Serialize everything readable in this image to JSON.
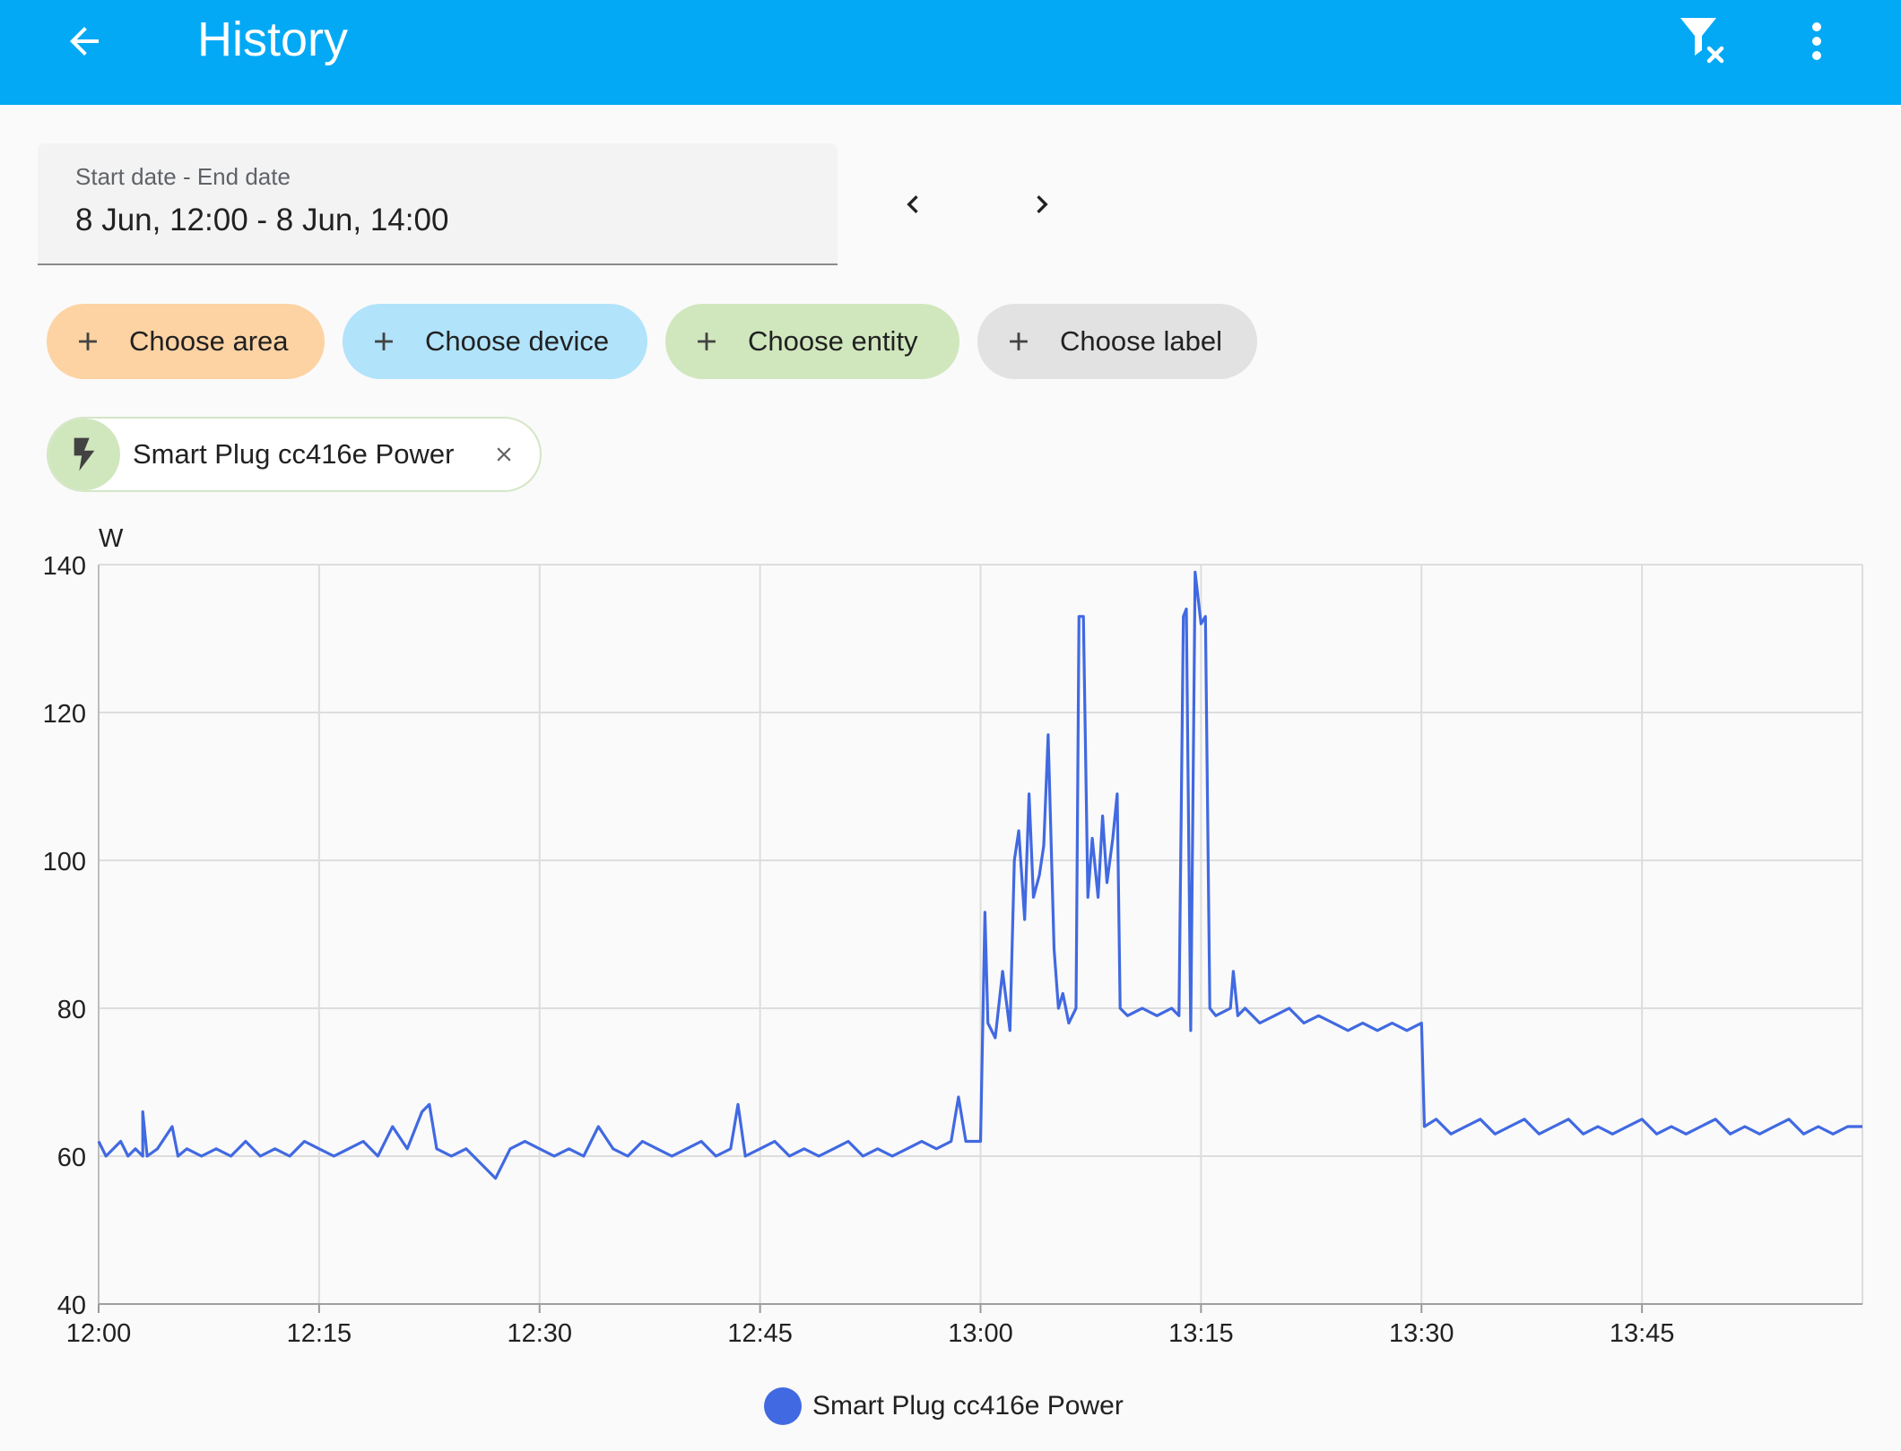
{
  "header": {
    "title": "History",
    "back_icon": "arrow-left-icon",
    "filter_clear_icon": "filter-remove-icon",
    "menu_icon": "dots-vertical-icon",
    "bg_color": "#03a9f4"
  },
  "date_range": {
    "label": "Start date - End date",
    "value": "8 Jun, 12:00 - 8 Jun, 14:00",
    "prev_icon": "chevron-left-icon",
    "next_icon": "chevron-right-icon"
  },
  "chips": {
    "area": "Choose area",
    "device": "Choose device",
    "entity": "Choose entity",
    "label": "Choose label"
  },
  "selected_entity": {
    "label": "Smart Plug cc416e Power",
    "icon": "flash-icon",
    "remove_icon": "close-icon"
  },
  "chart_data": {
    "type": "line",
    "unit_label": "W",
    "y_ticks": [
      "140",
      "120",
      "100",
      "80",
      "60",
      "40"
    ],
    "x_ticks": [
      "12:00",
      "12:15",
      "12:30",
      "12:45",
      "13:00",
      "13:15",
      "13:30",
      "13:45"
    ],
    "ylim": [
      40,
      140
    ],
    "xlim_minutes": [
      0,
      120
    ],
    "grid": true,
    "legend_position": "bottom-center",
    "series": [
      {
        "name": "Smart Plug cc416e Power",
        "color": "#4169e1",
        "points": [
          [
            0,
            62
          ],
          [
            0.5,
            60
          ],
          [
            1,
            61
          ],
          [
            1.5,
            62
          ],
          [
            2,
            60
          ],
          [
            2.5,
            61
          ],
          [
            3,
            60
          ],
          [
            3,
            66
          ],
          [
            3.3,
            60
          ],
          [
            4,
            61
          ],
          [
            5,
            64
          ],
          [
            5.4,
            60
          ],
          [
            6,
            61
          ],
          [
            7,
            60
          ],
          [
            8,
            61
          ],
          [
            9,
            60
          ],
          [
            10,
            62
          ],
          [
            11,
            60
          ],
          [
            12,
            61
          ],
          [
            13,
            60
          ],
          [
            14,
            62
          ],
          [
            15,
            61
          ],
          [
            16,
            60
          ],
          [
            17,
            61
          ],
          [
            18,
            62
          ],
          [
            19,
            60
          ],
          [
            20,
            64
          ],
          [
            21,
            61
          ],
          [
            22,
            66
          ],
          [
            22.5,
            67
          ],
          [
            23,
            61
          ],
          [
            24,
            60
          ],
          [
            25,
            61
          ],
          [
            26,
            59
          ],
          [
            27,
            57
          ],
          [
            28,
            61
          ],
          [
            29,
            62
          ],
          [
            30,
            61
          ],
          [
            31,
            60
          ],
          [
            32,
            61
          ],
          [
            33,
            60
          ],
          [
            34,
            64
          ],
          [
            35,
            61
          ],
          [
            36,
            60
          ],
          [
            37,
            62
          ],
          [
            38,
            61
          ],
          [
            39,
            60
          ],
          [
            40,
            61
          ],
          [
            41,
            62
          ],
          [
            42,
            60
          ],
          [
            43,
            61
          ],
          [
            43.5,
            67
          ],
          [
            44,
            60
          ],
          [
            45,
            61
          ],
          [
            46,
            62
          ],
          [
            47,
            60
          ],
          [
            48,
            61
          ],
          [
            49,
            60
          ],
          [
            50,
            61
          ],
          [
            51,
            62
          ],
          [
            52,
            60
          ],
          [
            53,
            61
          ],
          [
            54,
            60
          ],
          [
            55,
            61
          ],
          [
            56,
            62
          ],
          [
            57,
            61
          ],
          [
            58,
            62
          ],
          [
            58.5,
            68
          ],
          [
            59,
            62
          ],
          [
            59.5,
            62
          ],
          [
            60,
            62
          ],
          [
            60.3,
            93
          ],
          [
            60.5,
            78
          ],
          [
            61,
            76
          ],
          [
            61.5,
            85
          ],
          [
            62,
            77
          ],
          [
            62.3,
            100
          ],
          [
            62.6,
            104
          ],
          [
            63,
            92
          ],
          [
            63.3,
            109
          ],
          [
            63.6,
            95
          ],
          [
            64,
            98
          ],
          [
            64.3,
            102
          ],
          [
            64.6,
            117
          ],
          [
            65,
            88
          ],
          [
            65.3,
            80
          ],
          [
            65.6,
            82
          ],
          [
            66,
            78
          ],
          [
            66.5,
            80
          ],
          [
            66.7,
            133
          ],
          [
            67,
            133
          ],
          [
            67.3,
            95
          ],
          [
            67.6,
            103
          ],
          [
            68,
            95
          ],
          [
            68.3,
            106
          ],
          [
            68.6,
            97
          ],
          [
            69,
            103
          ],
          [
            69.3,
            109
          ],
          [
            69.5,
            80
          ],
          [
            70,
            79
          ],
          [
            71,
            80
          ],
          [
            72,
            79
          ],
          [
            73,
            80
          ],
          [
            73.5,
            79
          ],
          [
            73.8,
            133
          ],
          [
            74,
            134
          ],
          [
            74.3,
            77
          ],
          [
            74.6,
            139
          ],
          [
            75,
            132
          ],
          [
            75.3,
            133
          ],
          [
            75.6,
            80
          ],
          [
            76,
            79
          ],
          [
            77,
            80
          ],
          [
            77.2,
            85
          ],
          [
            77.5,
            79
          ],
          [
            78,
            80
          ],
          [
            79,
            78
          ],
          [
            80,
            79
          ],
          [
            81,
            80
          ],
          [
            82,
            78
          ],
          [
            83,
            79
          ],
          [
            84,
            78
          ],
          [
            85,
            77
          ],
          [
            86,
            78
          ],
          [
            87,
            77
          ],
          [
            88,
            78
          ],
          [
            89,
            77
          ],
          [
            90,
            78
          ],
          [
            90.2,
            64
          ],
          [
            91,
            65
          ],
          [
            92,
            63
          ],
          [
            93,
            64
          ],
          [
            94,
            65
          ],
          [
            95,
            63
          ],
          [
            96,
            64
          ],
          [
            97,
            65
          ],
          [
            98,
            63
          ],
          [
            99,
            64
          ],
          [
            100,
            65
          ],
          [
            101,
            63
          ],
          [
            102,
            64
          ],
          [
            103,
            63
          ],
          [
            104,
            64
          ],
          [
            105,
            65
          ],
          [
            106,
            63
          ],
          [
            107,
            64
          ],
          [
            108,
            63
          ],
          [
            109,
            64
          ],
          [
            110,
            65
          ],
          [
            111,
            63
          ],
          [
            112,
            64
          ],
          [
            113,
            63
          ],
          [
            114,
            64
          ],
          [
            115,
            65
          ],
          [
            116,
            63
          ],
          [
            117,
            64
          ],
          [
            118,
            63
          ],
          [
            119,
            64
          ],
          [
            120,
            64
          ]
        ]
      }
    ]
  }
}
